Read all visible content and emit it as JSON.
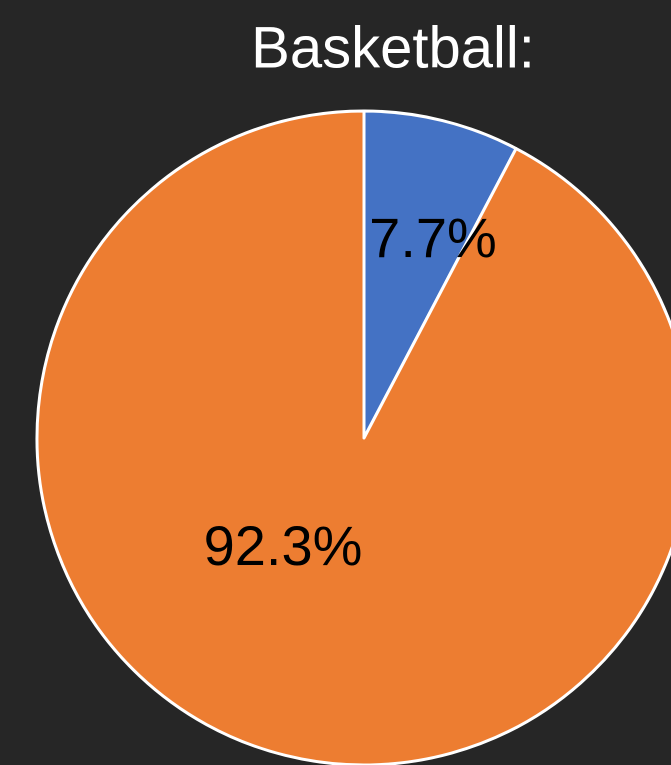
{
  "chart_data": {
    "type": "pie",
    "title": "Basketball:",
    "values": [
      7.7,
      92.3
    ],
    "value_labels": [
      "7.7%",
      "92.3%"
    ],
    "colors": [
      "#4472c4",
      "#ed7d31"
    ]
  }
}
